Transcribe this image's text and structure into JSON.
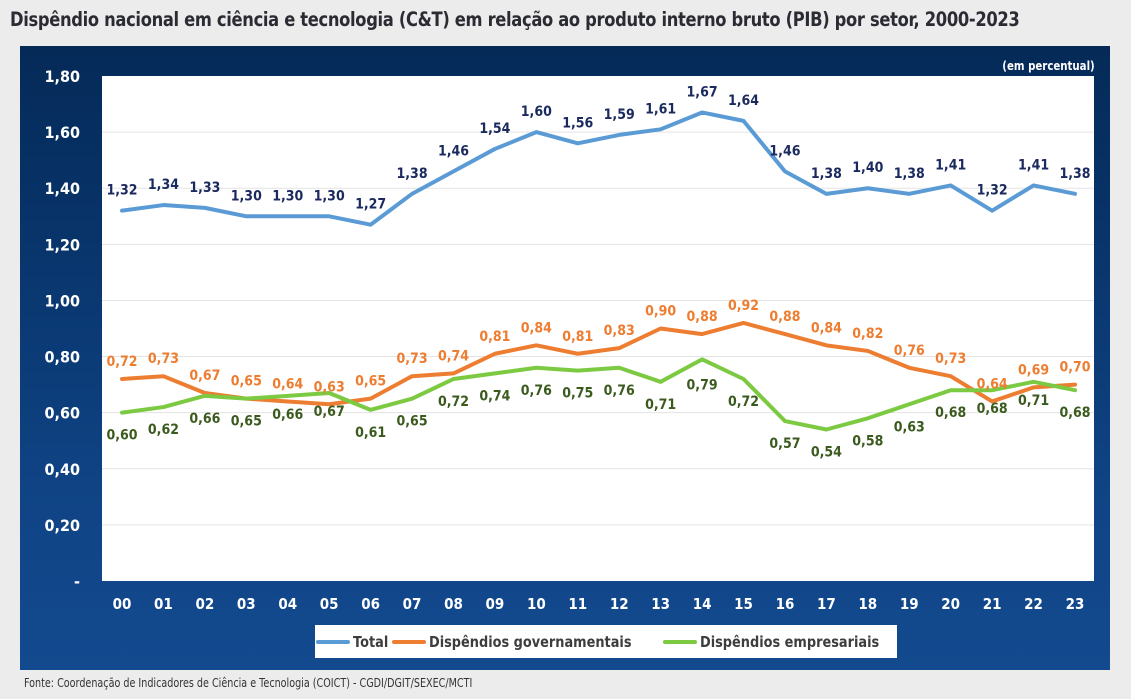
{
  "title": "Dispêndio nacional em ciência e tecnologia (C&T) em relação ao produto interno bruto (PIB) por setor, 2000-2023",
  "unit_note": "(em percentual)",
  "source": "Fonte: Coordenação de Indicadores de Ciência e Tecnologia (COICT) - CGDI/DGIT/SEXEC/MCTI",
  "colors": {
    "total": "#5b9bd5",
    "gov": "#ed7d31",
    "emp": "#7cc942",
    "total_label": "#1b2a5e",
    "gov_label": "#ed7d31",
    "emp_label": "#3b5a1e",
    "panel": "#0a3a75"
  },
  "chart_data": {
    "type": "line",
    "title": "Dispêndio nacional em ciência e tecnologia (C&T) em relação ao produto interno bruto (PIB) por setor, 2000-2023",
    "xlabel": "",
    "ylabel": "(em percentual)",
    "categories": [
      "00",
      "01",
      "02",
      "03",
      "04",
      "05",
      "06",
      "07",
      "08",
      "09",
      "10",
      "11",
      "12",
      "13",
      "14",
      "15",
      "16",
      "17",
      "18",
      "19",
      "20",
      "21",
      "22",
      "23"
    ],
    "ylim": [
      0,
      1.8
    ],
    "yticks": [
      0,
      0.2,
      0.4,
      0.6,
      0.8,
      1.0,
      1.2,
      1.4,
      1.6,
      1.8
    ],
    "ytick_labels": [
      "-",
      "0,20",
      "0,40",
      "0,60",
      "0,80",
      "1,00",
      "1,20",
      "1,40",
      "1,60",
      "1,80"
    ],
    "grid": true,
    "legend_position": "bottom",
    "series": [
      {
        "key": "total",
        "name": "Total",
        "values": [
          1.32,
          1.34,
          1.33,
          1.3,
          1.3,
          1.3,
          1.27,
          1.38,
          1.46,
          1.54,
          1.6,
          1.56,
          1.59,
          1.61,
          1.67,
          1.64,
          1.46,
          1.38,
          1.4,
          1.38,
          1.41,
          1.32,
          1.41,
          1.38
        ]
      },
      {
        "key": "gov",
        "name": "Dispêndios governamentais",
        "values": [
          0.72,
          0.73,
          0.67,
          0.65,
          0.64,
          0.63,
          0.65,
          0.73,
          0.74,
          0.81,
          0.84,
          0.81,
          0.83,
          0.9,
          0.88,
          0.92,
          0.88,
          0.84,
          0.82,
          0.76,
          0.73,
          0.64,
          0.69,
          0.7
        ]
      },
      {
        "key": "emp",
        "name": "Dispêndios empresariais",
        "values": [
          0.6,
          0.62,
          0.66,
          0.65,
          0.66,
          0.67,
          0.61,
          0.65,
          0.72,
          0.74,
          0.76,
          0.75,
          0.76,
          0.71,
          0.79,
          0.72,
          0.57,
          0.54,
          0.58,
          0.63,
          0.68,
          0.68,
          0.71,
          0.68
        ]
      }
    ]
  }
}
